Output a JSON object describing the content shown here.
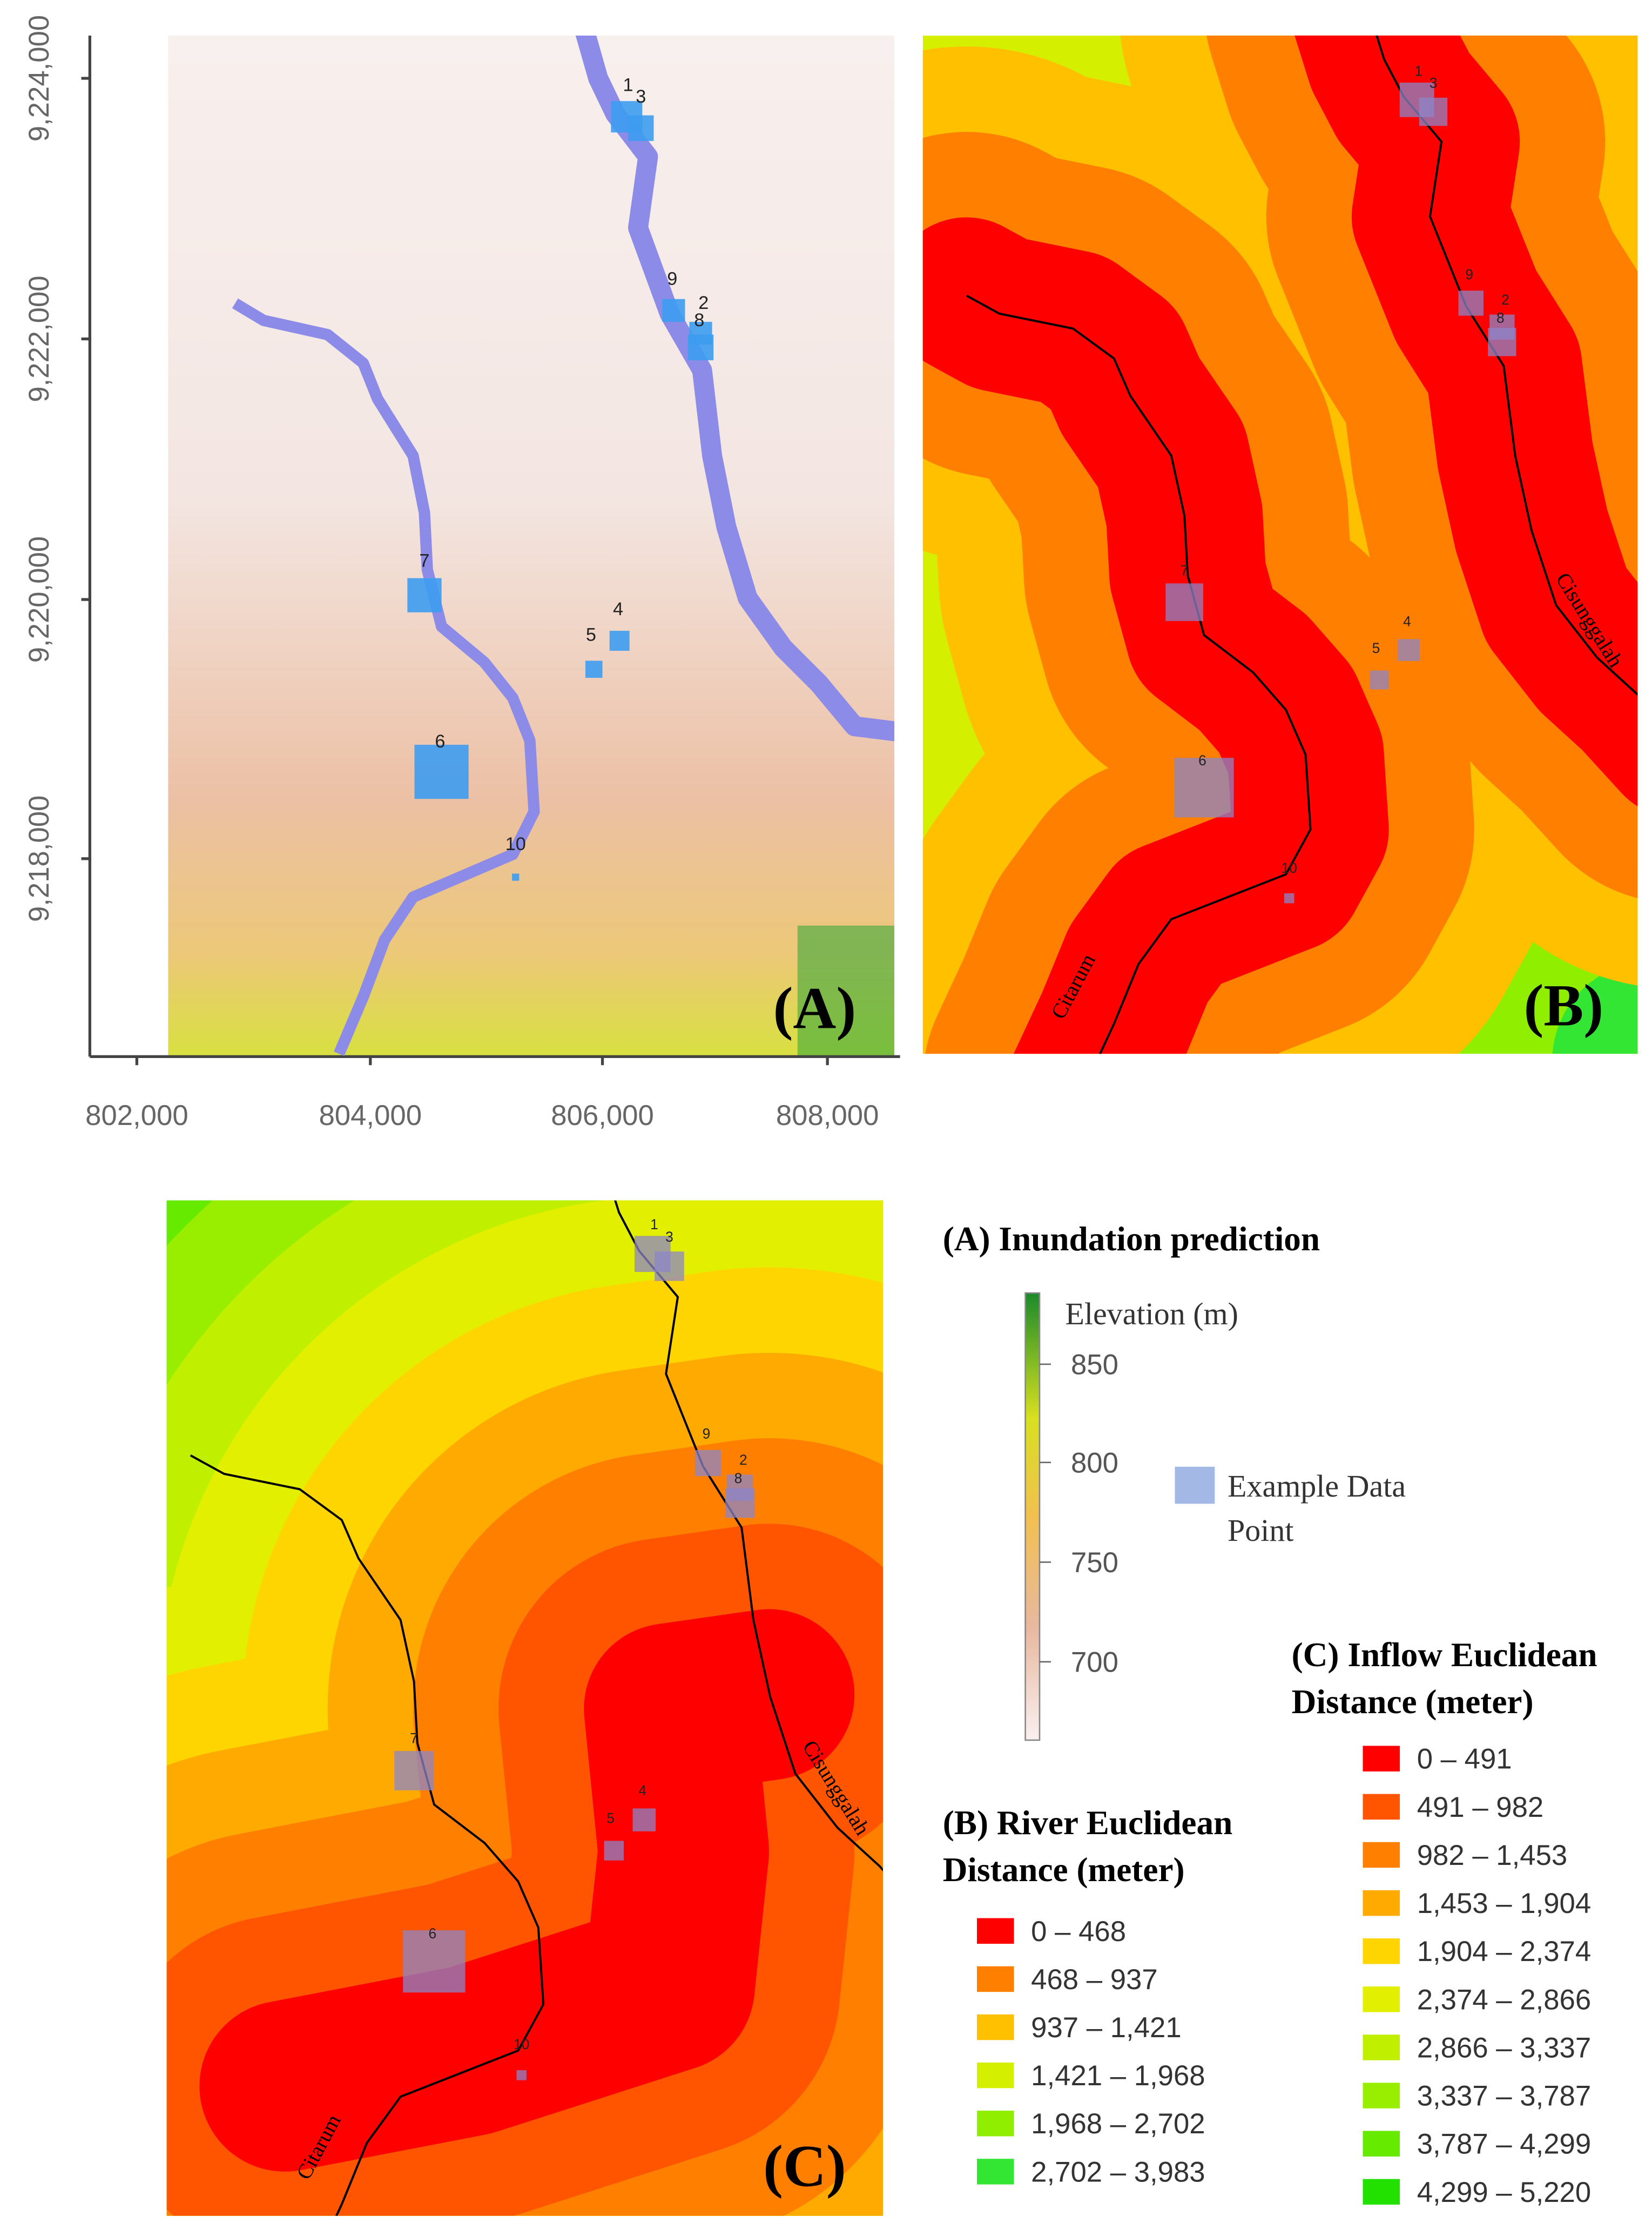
{
  "panel_a": {
    "label": "(A)",
    "y_ticks": [
      "9,224,000",
      "9,222,000",
      "9,220,000",
      "9,218,000"
    ],
    "x_ticks": [
      "802,000",
      "804,000",
      "806,000",
      "808,000"
    ]
  },
  "panel_b": {
    "label": "(B)"
  },
  "panel_c": {
    "label": "(C)"
  },
  "rivers": [
    "Citarum",
    "Cisunggalah"
  ],
  "point_labels": [
    "1",
    "2",
    "3",
    "4",
    "5",
    "6",
    "7",
    "8",
    "9",
    "10"
  ],
  "legend_a": {
    "title": "(A) Inundation prediction",
    "colorbar_title": "Elevation (m)",
    "ticks": [
      "850",
      "800",
      "750",
      "700"
    ],
    "point_label": [
      "Example Data",
      "Point"
    ]
  },
  "legend_b": {
    "title": [
      "(B) River Euclidean",
      "Distance (meter)"
    ],
    "classes": [
      {
        "label": "0 – 468",
        "color": "#ff0000"
      },
      {
        "label": "468 – 937",
        "color": "#ff7f00"
      },
      {
        "label": "937 – 1,421",
        "color": "#ffc000"
      },
      {
        "label": "1,421 – 1,968",
        "color": "#d4f000"
      },
      {
        "label": "1,968 – 2,702",
        "color": "#90ee00"
      },
      {
        "label": "2,702 – 3,983",
        "color": "#33e633"
      }
    ]
  },
  "legend_c": {
    "title": [
      "(C) Inflow Euclidean",
      "Distance (meter)"
    ],
    "classes": [
      {
        "label": "0 – 491",
        "color": "#ff0000"
      },
      {
        "label": "491 – 982",
        "color": "#ff5500"
      },
      {
        "label": "982 – 1,453",
        "color": "#ff8000"
      },
      {
        "label": "1,453 – 1,904",
        "color": "#ffaa00"
      },
      {
        "label": "1,904 – 2,374",
        "color": "#ffd500"
      },
      {
        "label": "2,374 – 2,866",
        "color": "#e2f000"
      },
      {
        "label": "2,866 – 3,337",
        "color": "#c0f000"
      },
      {
        "label": "3,337 – 3,787",
        "color": "#99ee00"
      },
      {
        "label": "3,787 – 4,299",
        "color": "#66ea00"
      },
      {
        "label": "4,299 – 5,220",
        "color": "#22e000"
      }
    ]
  }
}
